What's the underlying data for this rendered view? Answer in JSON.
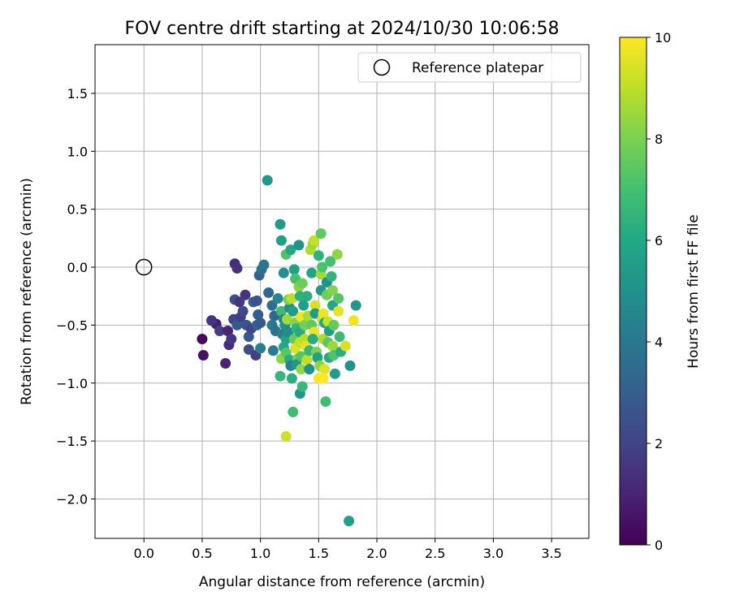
{
  "chart_data": {
    "type": "scatter",
    "title": "FOV centre drift starting at 2024/10/30 10:06:58",
    "xlabel": "Angular distance from reference (arcmin)",
    "ylabel": "Rotation from reference (arcmin)",
    "xlim": [
      -0.42,
      3.82
    ],
    "ylim": [
      -2.34,
      1.92
    ],
    "xticks": [
      0.0,
      0.5,
      1.0,
      1.5,
      2.0,
      2.5,
      3.0,
      3.5
    ],
    "yticks": [
      -2.0,
      -1.5,
      -1.0,
      -0.5,
      0.0,
      0.5,
      1.0,
      1.5
    ],
    "xtick_labels": [
      "0.0",
      "0.5",
      "1.0",
      "1.5",
      "2.0",
      "2.5",
      "3.0",
      "3.5"
    ],
    "ytick_labels": [
      "−2.0",
      "−1.5",
      "−1.0",
      "−0.5",
      "0.0",
      "0.5",
      "1.0",
      "1.5"
    ],
    "grid": true,
    "legend": {
      "placement": "top-right",
      "entries": [
        {
          "label": "Reference platepar",
          "marker": "open-circle",
          "x": 0.0,
          "y": 0.0
        }
      ]
    },
    "colorbar": {
      "label": "Hours from first FF file",
      "range": [
        0,
        10
      ],
      "ticks": [
        0,
        2,
        4,
        6,
        8,
        10
      ],
      "tick_labels": [
        "0",
        "2",
        "4",
        "6",
        "8",
        "10"
      ],
      "colormap": "viridis"
    },
    "points": [
      {
        "x": 0.5,
        "y": -0.62,
        "h": 0.2
      },
      {
        "x": 0.51,
        "y": -0.76,
        "h": 0.5
      },
      {
        "x": 0.62,
        "y": -0.49,
        "h": 0.8
      },
      {
        "x": 0.58,
        "y": -0.46,
        "h": 1.5
      },
      {
        "x": 0.65,
        "y": -0.55,
        "h": 1.9
      },
      {
        "x": 0.7,
        "y": -0.83,
        "h": 1.0
      },
      {
        "x": 0.73,
        "y": -0.67,
        "h": 1.2
      },
      {
        "x": 0.72,
        "y": -0.55,
        "h": 1.0
      },
      {
        "x": 0.75,
        "y": -0.62,
        "h": 1.6
      },
      {
        "x": 0.78,
        "y": 0.03,
        "h": 1.3
      },
      {
        "x": 0.8,
        "y": -0.01,
        "h": 1.4
      },
      {
        "x": 0.78,
        "y": -0.28,
        "h": 2.4
      },
      {
        "x": 0.82,
        "y": -0.3,
        "h": 1.6
      },
      {
        "x": 0.77,
        "y": -0.45,
        "h": 2.0
      },
      {
        "x": 0.8,
        "y": -0.5,
        "h": 2.8
      },
      {
        "x": 0.83,
        "y": -0.43,
        "h": 1.8
      },
      {
        "x": 0.85,
        "y": -0.38,
        "h": 2.2
      },
      {
        "x": 0.87,
        "y": -0.24,
        "h": 1.5
      },
      {
        "x": 0.88,
        "y": -0.5,
        "h": 2.6
      },
      {
        "x": 0.9,
        "y": -0.6,
        "h": 2.8
      },
      {
        "x": 0.92,
        "y": -0.53,
        "h": 2.0
      },
      {
        "x": 0.9,
        "y": -0.71,
        "h": 2.4
      },
      {
        "x": 0.94,
        "y": -0.3,
        "h": 3.0
      },
      {
        "x": 0.97,
        "y": -0.29,
        "h": 2.6
      },
      {
        "x": 0.96,
        "y": -0.76,
        "h": 1.8
      },
      {
        "x": 0.98,
        "y": -0.41,
        "h": 2.9
      },
      {
        "x": 0.97,
        "y": -0.5,
        "h": 3.2
      },
      {
        "x": 1.0,
        "y": -0.48,
        "h": 2.8
      },
      {
        "x": 0.99,
        "y": -0.07,
        "h": 3.1
      },
      {
        "x": 1.01,
        "y": -0.02,
        "h": 3.7
      },
      {
        "x": 1.03,
        "y": 0.02,
        "h": 3.9
      },
      {
        "x": 1.0,
        "y": -0.7,
        "h": 4.2
      },
      {
        "x": 1.06,
        "y": 0.75,
        "h": 5.2
      },
      {
        "x": 1.07,
        "y": -0.22,
        "h": 3.3
      },
      {
        "x": 1.1,
        "y": -0.33,
        "h": 3.6
      },
      {
        "x": 1.12,
        "y": -0.42,
        "h": 3.4
      },
      {
        "x": 1.1,
        "y": -0.5,
        "h": 4.0
      },
      {
        "x": 1.13,
        "y": -0.55,
        "h": 3.8
      },
      {
        "x": 1.11,
        "y": -0.72,
        "h": 4.1
      },
      {
        "x": 1.15,
        "y": -0.27,
        "h": 4.5
      },
      {
        "x": 1.17,
        "y": 0.37,
        "h": 5.4
      },
      {
        "x": 1.18,
        "y": 0.23,
        "h": 5.6
      },
      {
        "x": 1.2,
        "y": -0.05,
        "h": 4.9
      },
      {
        "x": 1.22,
        "y": 0.11,
        "h": 7.2
      },
      {
        "x": 1.18,
        "y": -0.38,
        "h": 6.8
      },
      {
        "x": 1.2,
        "y": -0.45,
        "h": 4.6
      },
      {
        "x": 1.21,
        "y": -0.5,
        "h": 5.0
      },
      {
        "x": 1.19,
        "y": -0.58,
        "h": 4.3
      },
      {
        "x": 1.22,
        "y": -0.62,
        "h": 5.8
      },
      {
        "x": 1.18,
        "y": -0.79,
        "h": 8.3
      },
      {
        "x": 1.17,
        "y": -0.94,
        "h": 6.6
      },
      {
        "x": 1.2,
        "y": -0.69,
        "h": 6.0
      },
      {
        "x": 1.22,
        "y": -0.74,
        "h": 7.4
      },
      {
        "x": 1.24,
        "y": -0.56,
        "h": 4.8
      },
      {
        "x": 1.23,
        "y": -0.45,
        "h": 8.6
      },
      {
        "x": 1.25,
        "y": -0.35,
        "h": 4.7
      },
      {
        "x": 1.24,
        "y": -0.28,
        "h": 8.0
      },
      {
        "x": 1.26,
        "y": 0.15,
        "h": 5.9
      },
      {
        "x": 1.27,
        "y": -0.27,
        "h": 9.0
      },
      {
        "x": 1.25,
        "y": -0.8,
        "h": 6.2
      },
      {
        "x": 1.26,
        "y": -0.85,
        "h": 4.4
      },
      {
        "x": 1.27,
        "y": -0.96,
        "h": 6.3
      },
      {
        "x": 1.28,
        "y": -1.25,
        "h": 6.9
      },
      {
        "x": 1.22,
        "y": -1.46,
        "h": 9.2
      },
      {
        "x": 1.29,
        "y": -0.02,
        "h": 5.7
      },
      {
        "x": 1.3,
        "y": -0.1,
        "h": 7.0
      },
      {
        "x": 1.28,
        "y": -0.38,
        "h": 5.5
      },
      {
        "x": 1.3,
        "y": -0.48,
        "h": 8.1
      },
      {
        "x": 1.31,
        "y": -0.53,
        "h": 6.5
      },
      {
        "x": 1.29,
        "y": -0.62,
        "h": 7.6
      },
      {
        "x": 1.3,
        "y": -0.7,
        "h": 9.5
      },
      {
        "x": 1.32,
        "y": -0.79,
        "h": 8.0
      },
      {
        "x": 1.31,
        "y": -0.84,
        "h": 5.3
      },
      {
        "x": 1.33,
        "y": 0.19,
        "h": 5.1
      },
      {
        "x": 1.33,
        "y": -0.17,
        "h": 8.2
      },
      {
        "x": 1.34,
        "y": -0.25,
        "h": 6.4
      },
      {
        "x": 1.35,
        "y": -0.43,
        "h": 9.8
      },
      {
        "x": 1.34,
        "y": -0.56,
        "h": 6.1
      },
      {
        "x": 1.34,
        "y": -0.65,
        "h": 9.1
      },
      {
        "x": 1.35,
        "y": -0.77,
        "h": 7.3
      },
      {
        "x": 1.35,
        "y": -0.88,
        "h": 8.4
      },
      {
        "x": 1.34,
        "y": -1.09,
        "h": 5.2
      },
      {
        "x": 1.36,
        "y": -1.03,
        "h": 6.7
      },
      {
        "x": 1.36,
        "y": -0.14,
        "h": 7.7
      },
      {
        "x": 1.37,
        "y": -0.33,
        "h": 5.6
      },
      {
        "x": 1.38,
        "y": -0.5,
        "h": 7.9
      },
      {
        "x": 1.38,
        "y": -0.62,
        "h": 8.9
      },
      {
        "x": 1.39,
        "y": -0.68,
        "h": 9.6
      },
      {
        "x": 1.4,
        "y": -0.25,
        "h": 6.3
      },
      {
        "x": 1.41,
        "y": -0.42,
        "h": 8.7
      },
      {
        "x": 1.4,
        "y": -0.8,
        "h": 9.0
      },
      {
        "x": 1.42,
        "y": -0.72,
        "h": 6.6
      },
      {
        "x": 1.42,
        "y": -0.88,
        "h": 5.0
      },
      {
        "x": 1.43,
        "y": 0.15,
        "h": 8.8
      },
      {
        "x": 1.44,
        "y": -0.05,
        "h": 5.8
      },
      {
        "x": 1.45,
        "y": 0.2,
        "h": 8.5
      },
      {
        "x": 1.46,
        "y": 0.23,
        "h": 9.1
      },
      {
        "x": 1.44,
        "y": -0.5,
        "h": 7.5
      },
      {
        "x": 1.46,
        "y": -0.56,
        "h": 9.7
      },
      {
        "x": 1.45,
        "y": -0.62,
        "h": 6.2
      },
      {
        "x": 1.47,
        "y": -0.33,
        "h": 9.4
      },
      {
        "x": 1.47,
        "y": -0.4,
        "h": 5.4
      },
      {
        "x": 1.48,
        "y": -0.73,
        "h": 8.0
      },
      {
        "x": 1.49,
        "y": -0.78,
        "h": 5.7
      },
      {
        "x": 1.5,
        "y": -0.96,
        "h": 9.9
      },
      {
        "x": 1.51,
        "y": -0.85,
        "h": 8.3
      },
      {
        "x": 1.5,
        "y": 0.1,
        "h": 6.4
      },
      {
        "x": 1.52,
        "y": 0.29,
        "h": 7.5
      },
      {
        "x": 1.52,
        "y": -0.06,
        "h": 8.6
      },
      {
        "x": 1.53,
        "y": 0.0,
        "h": 7.1
      },
      {
        "x": 1.52,
        "y": -0.2,
        "h": 5.3
      },
      {
        "x": 1.53,
        "y": -0.45,
        "h": 9.3
      },
      {
        "x": 1.54,
        "y": -0.4,
        "h": 9.7
      },
      {
        "x": 1.55,
        "y": -0.48,
        "h": 6.0
      },
      {
        "x": 1.54,
        "y": -0.62,
        "h": 8.8
      },
      {
        "x": 1.55,
        "y": -0.88,
        "h": 9.5
      },
      {
        "x": 1.54,
        "y": -0.96,
        "h": 10.0
      },
      {
        "x": 1.56,
        "y": -1.16,
        "h": 6.9
      },
      {
        "x": 1.57,
        "y": -0.13,
        "h": 5.0
      },
      {
        "x": 1.57,
        "y": -0.24,
        "h": 7.8
      },
      {
        "x": 1.58,
        "y": -0.47,
        "h": 9.2
      },
      {
        "x": 1.59,
        "y": -0.55,
        "h": 5.6
      },
      {
        "x": 1.58,
        "y": -0.65,
        "h": 7.4
      },
      {
        "x": 1.59,
        "y": -0.78,
        "h": 6.1
      },
      {
        "x": 1.6,
        "y": 0.05,
        "h": 7.0
      },
      {
        "x": 1.61,
        "y": -0.08,
        "h": 6.5
      },
      {
        "x": 1.62,
        "y": -0.2,
        "h": 8.1
      },
      {
        "x": 1.62,
        "y": -0.33,
        "h": 5.9
      },
      {
        "x": 1.63,
        "y": -0.5,
        "h": 7.6
      },
      {
        "x": 1.62,
        "y": -0.68,
        "h": 8.5
      },
      {
        "x": 1.63,
        "y": -0.76,
        "h": 7.2
      },
      {
        "x": 1.64,
        "y": -0.92,
        "h": 5.5
      },
      {
        "x": 1.66,
        "y": 0.11,
        "h": 8.3
      },
      {
        "x": 1.67,
        "y": -0.27,
        "h": 7.3
      },
      {
        "x": 1.67,
        "y": -0.38,
        "h": 9.6
      },
      {
        "x": 1.68,
        "y": -0.6,
        "h": 6.8
      },
      {
        "x": 1.69,
        "y": -0.73,
        "h": 6.2
      },
      {
        "x": 1.73,
        "y": -0.68,
        "h": 9.4
      },
      {
        "x": 1.77,
        "y": -0.85,
        "h": 5.1
      },
      {
        "x": 1.76,
        "y": -2.19,
        "h": 5.6
      },
      {
        "x": 1.8,
        "y": -0.46,
        "h": 9.8
      },
      {
        "x": 1.82,
        "y": -0.33,
        "h": 5.3
      }
    ]
  }
}
